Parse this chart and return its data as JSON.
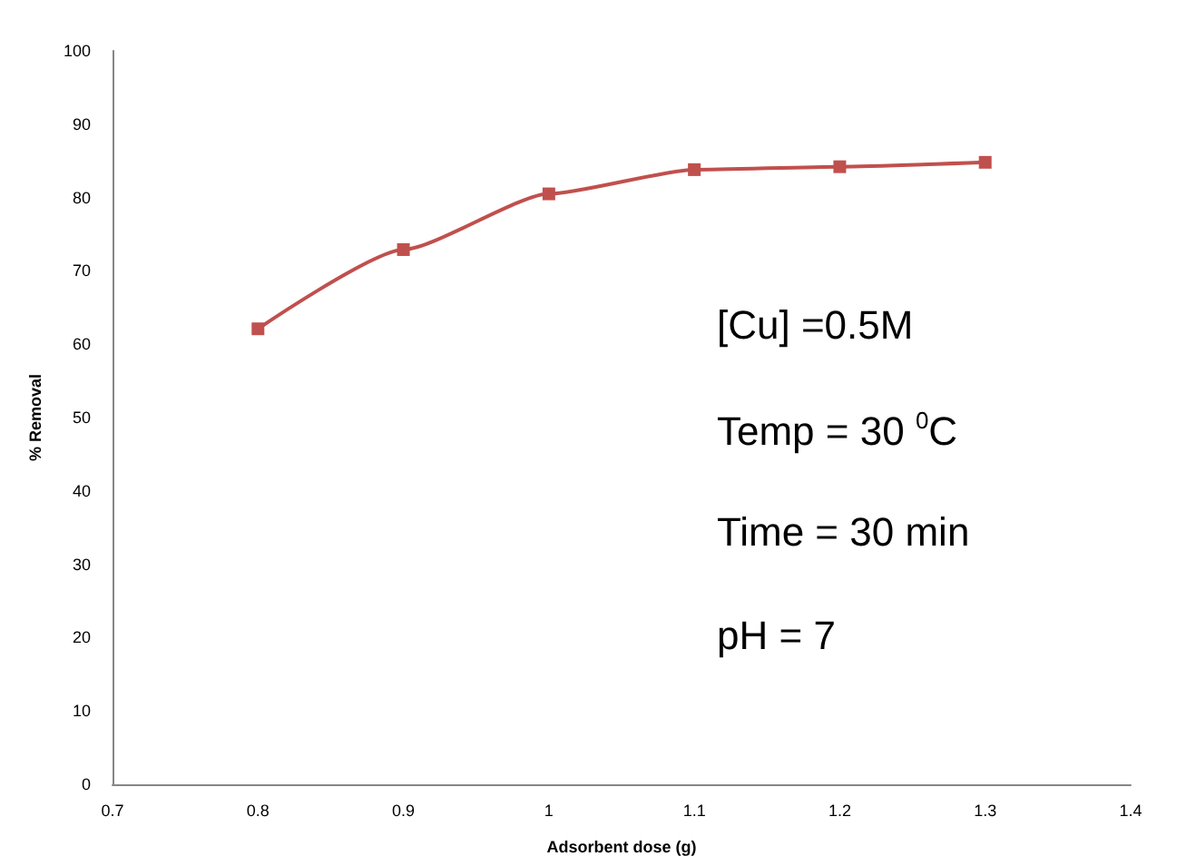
{
  "chart_data": {
    "type": "line",
    "xlabel": "Adsorbent dose (g)",
    "ylabel": "% Removal",
    "x": [
      0.8,
      0.9,
      1.0,
      1.1,
      1.2,
      1.3
    ],
    "series": [
      {
        "color": "#c0504d",
        "values": [
          62.1,
          72.9,
          80.5,
          83.8,
          84.2,
          84.8
        ]
      }
    ],
    "xlim": [
      0.7,
      1.4
    ],
    "xticks": [
      0.7,
      0.8,
      0.9,
      1,
      1.1,
      1.2,
      1.3,
      1.4
    ],
    "ylim": [
      0,
      100
    ],
    "yticks": [
      0,
      10,
      20,
      30,
      40,
      50,
      60,
      70,
      80,
      90,
      100
    ],
    "grid": false,
    "marker": "square",
    "line_style": "solid",
    "annotations": [
      "[Cu] =0.5M",
      "Temp = 30 $^{0}$C",
      "Time = 30 min",
      "pH = 7"
    ]
  }
}
